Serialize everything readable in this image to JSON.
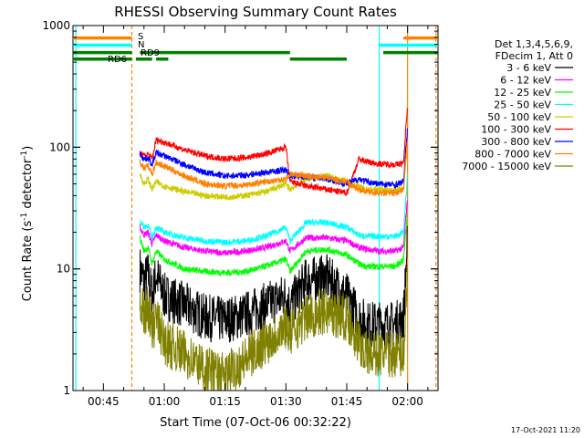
{
  "chart_data": {
    "type": "line",
    "title": "RHESSI Observing Summary Count Rates",
    "xlabel": "Start Time (07-Oct-06 00:32:22)",
    "ylabel_main": "Count Rate (s",
    "ylabel_sup1": "-1",
    "ylabel_mid": " detector",
    "ylabel_sup2": "-1",
    "ylabel_end": ")",
    "y_scale": "log",
    "ylim": [
      1,
      1000
    ],
    "y_ticks": [
      {
        "value": 1,
        "label": "1"
      },
      {
        "value": 10,
        "label": "10"
      },
      {
        "value": 100,
        "label": "100"
      },
      {
        "value": 1000,
        "label": "1000"
      }
    ],
    "xlim_minutes": [
      37.5,
      127.5
    ],
    "x_ticks": [
      {
        "minute": 45,
        "label": "00:45"
      },
      {
        "minute": 60,
        "label": "01:00"
      },
      {
        "minute": 75,
        "label": "01:15"
      },
      {
        "minute": 90,
        "label": "01:30"
      },
      {
        "minute": 105,
        "label": "01:45"
      },
      {
        "minute": 120,
        "label": "02:00"
      }
    ],
    "legend": {
      "placement": "right",
      "header1": "Det 1,3,4,5,6,9,",
      "header2": "FDecim 1, Att 0",
      "entries": [
        {
          "label": "3 - 6 keV",
          "color": "#000000"
        },
        {
          "label": "6 - 12 keV",
          "color": "#ff00ff"
        },
        {
          "label": "12 - 25 keV",
          "color": "#00ff00"
        },
        {
          "label": "25 - 50 keV",
          "color": "#00ffff"
        },
        {
          "label": "50 - 100 keV",
          "color": "#cccc00"
        },
        {
          "label": "100 - 300 keV",
          "color": "#ff0000"
        },
        {
          "label": "300 - 800 keV",
          "color": "#0000ff"
        },
        {
          "label": "800 - 7000 keV",
          "color": "#ff8000"
        },
        {
          "label": "7000 - 15000 keV",
          "color": "#808000"
        }
      ]
    },
    "flags": [
      {
        "label": "S",
        "color": "#ff8000",
        "y": 790,
        "segments": [
          [
            37.5,
            52
          ],
          [
            119,
            127.5
          ]
        ]
      },
      {
        "label": "N",
        "color": "#00ffff",
        "y": 690,
        "segments": [
          [
            37.5,
            52
          ],
          [
            113,
            127.5
          ]
        ]
      },
      {
        "label": "RD9",
        "color": "#008000",
        "y": 600,
        "segments": [
          [
            37.5,
            52
          ],
          [
            54,
            91
          ],
          [
            114,
            127.5
          ]
        ]
      },
      {
        "label": "RD6",
        "color": "#008000",
        "y": 530,
        "segments": [
          [
            37.5,
            52
          ],
          [
            53,
            57
          ],
          [
            58,
            61
          ],
          [
            91,
            105
          ]
        ]
      }
    ],
    "vlines": [
      {
        "minute": 38.2,
        "color": "#00ffff",
        "style": "solid"
      },
      {
        "minute": 52,
        "color": "#ff8000",
        "style": "dashed"
      },
      {
        "minute": 113,
        "color": "#00ffff",
        "style": "solid"
      },
      {
        "minute": 120,
        "color": "#ff8000",
        "style": "solid"
      },
      {
        "minute": 127,
        "color": "#ff8000",
        "style": "dashed"
      }
    ],
    "series": [
      {
        "name": "3 - 6 keV",
        "color": "#000000",
        "x": [
          54,
          55,
          56,
          57,
          58,
          60,
          65,
          70,
          75,
          80,
          85,
          90,
          91,
          95,
          100,
          105,
          108,
          110,
          113,
          117,
          119,
          120
        ],
        "y": [
          10,
          8,
          9,
          6,
          9,
          6,
          5,
          4,
          3.8,
          4.2,
          5,
          6,
          5,
          8,
          8.5,
          6,
          4,
          3.5,
          3.5,
          3.5,
          4,
          18
        ]
      },
      {
        "name": "6 - 12 keV",
        "color": "#ff00ff",
        "x": [
          54,
          55,
          56,
          57,
          58,
          60,
          65,
          70,
          75,
          80,
          85,
          90,
          91,
          95,
          100,
          105,
          108,
          110,
          113,
          117,
          119,
          120
        ],
        "y": [
          22,
          19,
          20,
          16,
          19,
          17,
          15,
          14,
          13.5,
          14,
          15,
          17,
          14,
          18,
          18,
          17,
          15,
          14.5,
          14,
          14,
          15,
          40
        ]
      },
      {
        "name": "12 - 25 keV",
        "color": "#00ff00",
        "x": [
          54,
          55,
          56,
          57,
          58,
          60,
          65,
          70,
          75,
          80,
          85,
          90,
          91,
          95,
          100,
          105,
          108,
          110,
          113,
          117,
          119,
          120
        ],
        "y": [
          18,
          14,
          15,
          11,
          14,
          12,
          10,
          9.5,
          9.3,
          9.5,
          10.5,
          12,
          9.5,
          14,
          14.5,
          13,
          11,
          10.5,
          10.5,
          10.5,
          12,
          30
        ]
      },
      {
        "name": "25 - 50 keV",
        "color": "#00ffff",
        "x": [
          54,
          55,
          56,
          57,
          58,
          60,
          65,
          70,
          75,
          80,
          85,
          90,
          91,
          95,
          100,
          105,
          108,
          110,
          113,
          117,
          119,
          120
        ],
        "y": [
          25,
          22,
          23,
          18,
          22,
          20,
          18,
          17,
          16.5,
          17,
          18.5,
          22,
          17,
          24,
          24,
          22,
          19,
          18.5,
          18.5,
          18.5,
          20,
          60
        ]
      },
      {
        "name": "50 - 100 keV",
        "color": "#cccc00",
        "x": [
          54,
          55,
          56,
          57,
          58,
          60,
          65,
          70,
          75,
          80,
          85,
          90,
          91,
          95,
          100,
          105,
          108,
          110,
          113,
          117,
          119,
          120
        ],
        "y": [
          60,
          50,
          55,
          45,
          52,
          48,
          43,
          40,
          39,
          40,
          43,
          50,
          45,
          55,
          58,
          52,
          47,
          45,
          45,
          44,
          47,
          110
        ]
      },
      {
        "name": "100 - 300 keV",
        "color": "#ff0000",
        "x": [
          54,
          55,
          56,
          57,
          58,
          60,
          65,
          70,
          75,
          80,
          85,
          90,
          91,
          95,
          100,
          105,
          108,
          110,
          113,
          117,
          119,
          120
        ],
        "y": [
          90,
          85,
          88,
          80,
          115,
          110,
          95,
          85,
          80,
          82,
          88,
          100,
          52,
          48,
          45,
          42,
          80,
          76,
          73,
          72,
          74,
          230
        ]
      },
      {
        "name": "300 - 800 keV",
        "color": "#0000ff",
        "x": [
          54,
          55,
          56,
          57,
          58,
          60,
          65,
          70,
          75,
          80,
          85,
          90,
          91,
          95,
          100,
          105,
          108,
          110,
          113,
          117,
          119,
          120
        ],
        "y": [
          88,
          80,
          82,
          72,
          90,
          85,
          72,
          62,
          58,
          59,
          62,
          65,
          58,
          57,
          55,
          50,
          55,
          52,
          50,
          49,
          52,
          150
        ]
      },
      {
        "name": "800 - 7000 keV",
        "color": "#ff8000",
        "x": [
          54,
          55,
          56,
          57,
          58,
          60,
          65,
          70,
          75,
          80,
          85,
          90,
          91,
          95,
          100,
          105,
          108,
          110,
          113,
          117,
          119,
          120
        ],
        "y": [
          75,
          68,
          70,
          60,
          75,
          70,
          58,
          50,
          48,
          49,
          52,
          55,
          60,
          58,
          56,
          52,
          45,
          43,
          42,
          42,
          44,
          120
        ]
      },
      {
        "name": "7000 - 15000 keV",
        "color": "#808000",
        "x": [
          54,
          55,
          56,
          57,
          58,
          60,
          65,
          70,
          75,
          80,
          85,
          90,
          91,
          95,
          100,
          105,
          108,
          110,
          113,
          117,
          119,
          120
        ],
        "y": [
          6,
          4,
          5,
          3,
          4,
          2.5,
          2,
          1.5,
          1.3,
          1.8,
          2.5,
          3.5,
          3,
          4,
          4.5,
          4,
          2.5,
          2,
          2,
          2,
          2,
          10
        ]
      }
    ],
    "timestamp": "17-Oct-2021 11:20"
  }
}
